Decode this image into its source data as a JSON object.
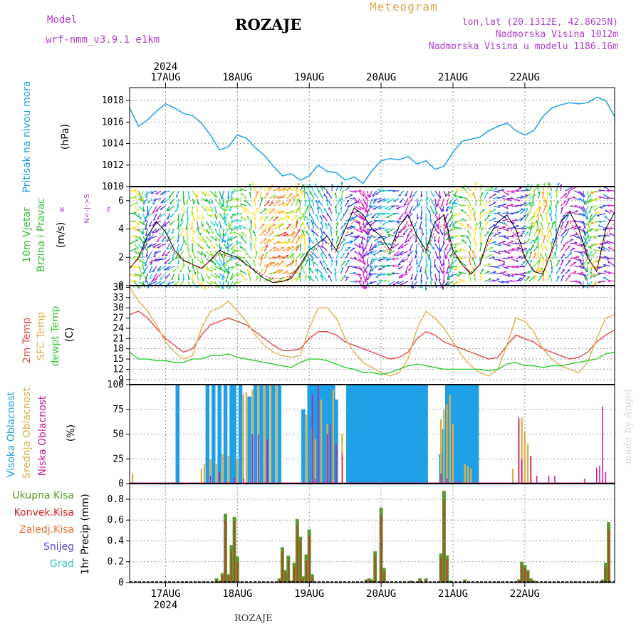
{
  "header": {
    "model_label": "Model",
    "model_name": "wrf-nmm_v3.9.1  e1km",
    "location": "ROZAJE",
    "chart_kind": "Meteogram",
    "lonlat": "lon,lat (20.1312E, 42.8625N)",
    "altitude": "Nadmorska Visina 1012m",
    "model_altitude": "Nadmorska Visina u modelu 1186.16m",
    "footer_location": "ROZAJE",
    "credit": "made by Angel"
  },
  "colors": {
    "pressure": "#1ea0e6",
    "temp2m": "#e84848",
    "sfc": "#e0b050",
    "dewpt": "#30cc30",
    "cloud_high": "#1ea0e6",
    "cloud_mid": "#d8b050",
    "cloud_low": "#d01890",
    "precip_total": "#5a9a30",
    "precip_conv": "#e02020",
    "precip_frozen": "#f07030",
    "snow": "#5050e0",
    "hail": "#30c8c8",
    "purple_text": "#b040d0"
  },
  "chart_data": [
    {
      "type": "line",
      "panel": "pressure",
      "ylabel": "Pritisak na nivou mora",
      "unit": "(hPa)",
      "x_top_labels": [
        "17AUG",
        "18AUG",
        "19AUG",
        "20AUG",
        "21AUG",
        "22AUG"
      ],
      "x_top_year": "2024",
      "yticks": [
        1010,
        1012,
        1014,
        1016,
        1018
      ],
      "ylim": [
        1010,
        1019.2
      ],
      "x_hours": [
        0,
        3,
        6,
        9,
        12,
        15,
        18,
        21,
        24,
        27,
        30,
        33,
        36,
        39,
        42,
        45,
        48,
        51,
        54,
        57,
        60,
        63,
        66,
        69,
        72,
        75,
        78,
        81,
        84,
        87,
        90,
        93,
        96,
        99,
        102,
        105,
        108,
        111,
        114,
        117,
        120,
        123,
        126,
        129,
        132,
        135,
        138,
        141,
        144,
        147,
        150,
        153,
        156,
        159,
        162
      ],
      "values": [
        1017.3,
        1015.6,
        1016.2,
        1017.0,
        1017.7,
        1017.3,
        1016.8,
        1016.6,
        1015.9,
        1014.8,
        1013.4,
        1013.7,
        1014.8,
        1014.5,
        1013.6,
        1012.9,
        1011.9,
        1011.0,
        1011.2,
        1010.6,
        1011.0,
        1012.0,
        1011.4,
        1011.3,
        1010.6,
        1010.9,
        1010.3,
        1011.5,
        1012.4,
        1012.6,
        1012.5,
        1012.8,
        1012.1,
        1012.4,
        1011.6,
        1011.9,
        1013.2,
        1014.2,
        1014.4,
        1014.6,
        1015.2,
        1015.6,
        1015.9,
        1015.2,
        1014.8,
        1015.2,
        1016.5,
        1017.3,
        1017.6,
        1017.8,
        1017.7,
        1017.8,
        1018.3,
        1018.0,
        1016.5
      ]
    },
    {
      "type": "line",
      "panel": "wind",
      "ylabel1": "10m Vjetar",
      "ylabel2": "Brzina i Pravac",
      "unit": "(m/s)",
      "compass_ns": "N<-|->S",
      "compass_w": "W",
      "compass_e": "E",
      "yticks": [
        0,
        2,
        4,
        6
      ],
      "ylim": [
        0,
        7
      ],
      "x_hours": [
        0,
        3,
        6,
        9,
        12,
        15,
        18,
        21,
        24,
        27,
        30,
        33,
        36,
        39,
        42,
        45,
        48,
        51,
        54,
        57,
        60,
        63,
        66,
        69,
        72,
        75,
        78,
        81,
        84,
        87,
        90,
        93,
        96,
        99,
        102,
        105,
        108,
        111,
        114,
        117,
        120,
        123,
        126,
        129,
        132,
        135,
        138,
        141,
        144,
        147,
        150,
        153,
        156,
        159,
        162
      ],
      "values": [
        1.2,
        2.0,
        3.5,
        4.5,
        3.8,
        2.5,
        1.8,
        1.5,
        1.2,
        1.8,
        2.5,
        2.2,
        2.0,
        1.5,
        1.0,
        0.5,
        0.2,
        0.3,
        0.5,
        1.5,
        2.5,
        3.0,
        3.5,
        2.5,
        4.0,
        5.5,
        5.0,
        4.0,
        3.5,
        2.5,
        4.2,
        5.0,
        3.5,
        2.5,
        4.5,
        5.0,
        2.5,
        1.5,
        0.8,
        1.5,
        3.5,
        4.5,
        5.0,
        4.0,
        2.0,
        1.0,
        0.8,
        2.5,
        4.5,
        5.2,
        4.0,
        2.0,
        1.0,
        4.0,
        5.2
      ]
    },
    {
      "type": "line",
      "panel": "temperature",
      "ylabel1": "2m Temp",
      "ylabel2": "SFC Temp",
      "ylabel3": "dewpt Temp",
      "unit": "(C)",
      "yticks": [
        9,
        12,
        15,
        18,
        21,
        24,
        27,
        30,
        33,
        36
      ],
      "ylim": [
        7.5,
        36.5
      ],
      "x_hours": [
        0,
        3,
        6,
        9,
        12,
        15,
        18,
        21,
        24,
        27,
        30,
        33,
        36,
        39,
        42,
        45,
        48,
        51,
        54,
        57,
        60,
        63,
        66,
        69,
        72,
        75,
        78,
        81,
        84,
        87,
        90,
        93,
        96,
        99,
        102,
        105,
        108,
        111,
        114,
        117,
        120,
        123,
        126,
        129,
        132,
        135,
        138,
        141,
        144,
        147,
        150,
        153,
        156,
        159,
        162
      ],
      "series": [
        {
          "name": "2m Temp",
          "color": "#e84848",
          "values": [
            28,
            29,
            27,
            24,
            21,
            19,
            17,
            18,
            22,
            25,
            26,
            27,
            26,
            25,
            23,
            21,
            19,
            17.5,
            17.5,
            18,
            21,
            23,
            23,
            22,
            20,
            19,
            18,
            17,
            16,
            15,
            15.5,
            17,
            21,
            23,
            22,
            20,
            19,
            18,
            17,
            16,
            15,
            15.5,
            19,
            22,
            21,
            20,
            18,
            17,
            16,
            15,
            15.5,
            17,
            20,
            22,
            23.5
          ]
        },
        {
          "name": "SFC Temp",
          "color": "#e0b050",
          "values": [
            36,
            32,
            29,
            25,
            20,
            17,
            15,
            16,
            24,
            29,
            30,
            32,
            29,
            26,
            22,
            19,
            17,
            16,
            15.5,
            16,
            24,
            30,
            30,
            27,
            21,
            17,
            14,
            12.5,
            11,
            10,
            11,
            15,
            24,
            29,
            27,
            24,
            20,
            16,
            13,
            11,
            10,
            12,
            19,
            27,
            26,
            23,
            18,
            15,
            13,
            12,
            11,
            14,
            21,
            27,
            28
          ]
        },
        {
          "name": "dewpt Temp",
          "color": "#30cc30",
          "values": [
            17,
            15,
            15,
            14.5,
            14.5,
            14,
            14,
            15,
            15,
            16,
            16,
            16.5,
            15.5,
            15,
            14.5,
            14,
            13.5,
            13,
            12.5,
            14,
            15,
            15,
            14.5,
            13.5,
            12.5,
            12,
            11,
            11,
            10.5,
            11,
            12,
            13,
            13.5,
            13,
            12.5,
            12,
            12,
            12,
            12,
            12,
            11.5,
            12,
            13.5,
            14,
            13,
            13,
            12.5,
            13,
            13,
            13.5,
            14,
            14.5,
            15,
            16.5,
            17
          ]
        }
      ]
    },
    {
      "type": "bar",
      "panel": "cloud",
      "ylabel1": "Visoka Oblacnost",
      "ylabel2": "Srednja Oblacnost",
      "ylabel3": "Niska Oblacnost",
      "unit": "(%)",
      "yticks": [
        0,
        25,
        50,
        75,
        100
      ],
      "ylim": [
        0,
        100
      ],
      "high_hours": [
        16,
        26,
        28,
        30,
        32,
        34,
        35,
        37,
        40,
        42,
        44,
        46,
        48,
        50,
        58,
        60,
        61,
        62,
        63,
        64,
        65,
        66,
        67,
        68,
        69,
        73,
        74,
        75,
        76,
        77,
        78,
        79,
        80,
        81,
        82,
        83,
        84,
        85,
        86,
        87,
        88,
        89,
        90,
        91,
        92,
        93,
        94,
        95,
        96,
        97,
        98,
        99,
        104,
        105,
        106,
        107,
        108,
        109,
        110,
        111,
        112,
        113,
        114,
        115,
        116
      ],
      "high_values": [
        100,
        100,
        100,
        100,
        100,
        100,
        100,
        100,
        88,
        100,
        100,
        100,
        100,
        100,
        75,
        100,
        100,
        100,
        100,
        100,
        100,
        100,
        100,
        100,
        85,
        100,
        100,
        100,
        100,
        100,
        100,
        100,
        100,
        100,
        100,
        100,
        100,
        100,
        100,
        100,
        100,
        100,
        100,
        100,
        100,
        100,
        100,
        100,
        100,
        100,
        100,
        100,
        30,
        55,
        100,
        100,
        100,
        100,
        100,
        100,
        100,
        100,
        100,
        100,
        100
      ],
      "mid_hours": [
        1,
        24,
        25,
        27,
        29,
        31,
        33,
        36,
        38,
        39,
        41,
        43,
        45,
        47,
        49,
        59,
        61,
        62,
        64,
        66,
        68,
        71,
        104,
        105,
        106,
        107,
        108,
        112,
        113,
        114,
        128,
        130,
        131,
        132,
        133,
        134
      ],
      "mid_values": [
        10,
        15,
        20,
        25,
        20,
        30,
        28,
        25,
        90,
        92,
        95,
        100,
        100,
        100,
        100,
        70,
        55,
        45,
        85,
        60,
        95,
        50,
        65,
        75,
        80,
        90,
        60,
        20,
        18,
        15,
        15,
        65,
        67,
        53,
        40,
        28
      ],
      "low_hours": [
        27,
        30,
        35,
        38,
        41,
        43,
        46,
        61,
        62,
        63,
        66,
        67,
        69,
        71,
        104,
        106,
        110,
        130,
        131,
        134,
        136,
        140,
        142,
        152,
        156,
        157,
        158,
        159
      ],
      "low_values": [
        8,
        12,
        6,
        5,
        50,
        50,
        45,
        90,
        5,
        100,
        50,
        60,
        40,
        30,
        10,
        5,
        3,
        67,
        25,
        28,
        8,
        8,
        8,
        5,
        16,
        18,
        78,
        12
      ]
    },
    {
      "type": "bar",
      "panel": "precip",
      "ylabel": "1hr Precip (mm)",
      "legend": [
        "Ukupna Kisa",
        "Konvek.Kisa",
        "Zaledj.Kisa",
        "Snijeg",
        "Grad"
      ],
      "x_bottom_labels": [
        "17AUG",
        "18AUG",
        "19AUG",
        "20AUG",
        "21AUG",
        "22AUG"
      ],
      "x_bottom_year": "2024",
      "yticks": [
        0,
        0.2,
        0.4,
        0.6,
        0.8
      ],
      "ylim": [
        0,
        0.95
      ],
      "hours": [
        25,
        29,
        30,
        31,
        32,
        33,
        34,
        35,
        36,
        37,
        50,
        51,
        52,
        53,
        54,
        55,
        56,
        57,
        58,
        59,
        60,
        61,
        79,
        80,
        81,
        82,
        84,
        85,
        94,
        97,
        99,
        104,
        105,
        106,
        107,
        112,
        130,
        131,
        132,
        133,
        134,
        135,
        156,
        158,
        159,
        160
      ],
      "total_values": [
        0.01,
        0.04,
        0.02,
        0.09,
        0.66,
        0.08,
        0.36,
        0.63,
        0.25,
        0.01,
        0.04,
        0.34,
        0.12,
        0.26,
        0.02,
        0.19,
        0.61,
        0.44,
        0.06,
        0.27,
        0.51,
        0.08,
        0.03,
        0.04,
        0.03,
        0.3,
        0.72,
        0.14,
        0.02,
        0.04,
        0.04,
        0.28,
        0.88,
        0.26,
        0.02,
        0.03,
        0.03,
        0.2,
        0.17,
        0.12,
        0.04,
        0.02,
        0.01,
        0.03,
        0.19,
        0.58
      ],
      "conv_values": [
        0.01,
        0.03,
        0.01,
        0.07,
        0.6,
        0.06,
        0.3,
        0.58,
        0.2,
        0.0,
        0.03,
        0.3,
        0.1,
        0.22,
        0.01,
        0.15,
        0.55,
        0.4,
        0.04,
        0.22,
        0.45,
        0.05,
        0.02,
        0.03,
        0.02,
        0.26,
        0.65,
        0.1,
        0.01,
        0.03,
        0.03,
        0.24,
        0.8,
        0.22,
        0.01,
        0.02,
        0.02,
        0.16,
        0.14,
        0.1,
        0.03,
        0.01,
        0.0,
        0.02,
        0.15,
        0.5
      ]
    }
  ]
}
